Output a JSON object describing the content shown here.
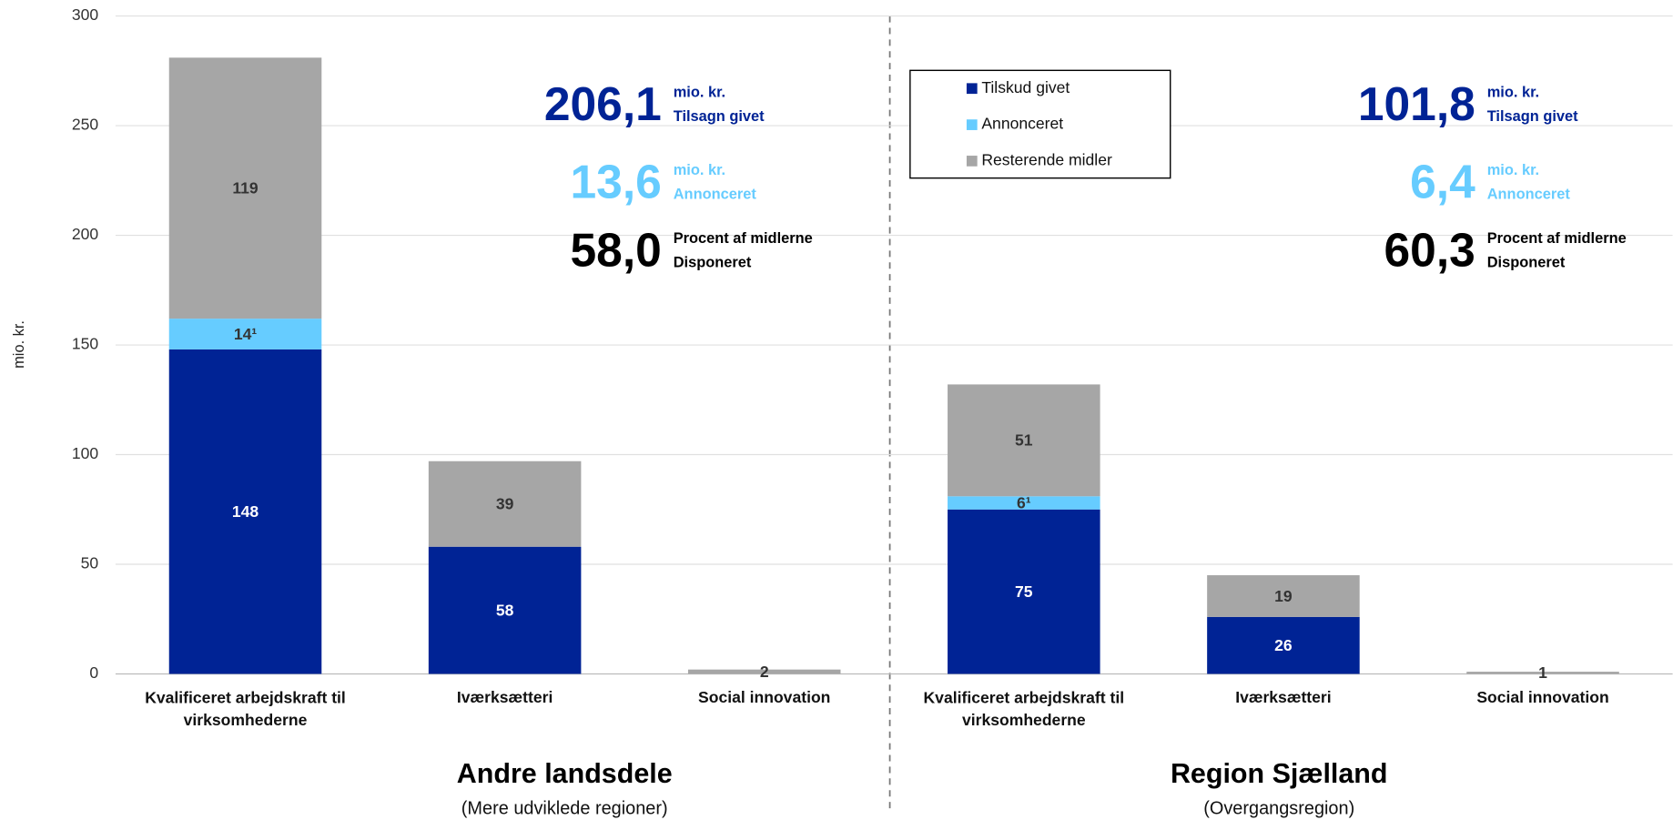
{
  "chart_data": {
    "type": "stacked_bar",
    "y_label": "mio. kr.",
    "ylim": [
      0,
      300
    ],
    "yticks": [
      0,
      50,
      100,
      150,
      200,
      250,
      300
    ],
    "grid": true,
    "legend": "top",
    "categories": [
      "Kvalificeret arbejdskraft til virksomhederne",
      "Iværksætteri",
      "Social innovation",
      "Kvalificeret arbejdskraft til virksomhederne",
      "Iværksætteri",
      "Social innovation"
    ],
    "series": [
      {
        "name": "Tilskud givet",
        "color": "#002395",
        "values": [
          148,
          58,
          0,
          75,
          26,
          0
        ]
      },
      {
        "name": "Annonceret",
        "color": "#66ccff",
        "values": [
          14,
          0,
          0,
          6,
          0,
          0
        ],
        "value_labels": [
          "14¹",
          null,
          null,
          "6¹",
          null,
          null
        ]
      },
      {
        "name": "Resterende midler",
        "color": "#a6a6a6",
        "values": [
          119,
          39,
          2,
          51,
          19,
          1
        ]
      }
    ],
    "groups": [
      {
        "name": "Andre landsdele",
        "subtitle": "(Mere udviklede regioner)",
        "stats": [
          {
            "value": "206,1",
            "unit": "mio. kr.",
            "label": "Tilsagn givet",
            "color": "#002395"
          },
          {
            "value": "13,6",
            "unit": "mio. kr.",
            "label": "Annonceret",
            "color": "#66ccff"
          },
          {
            "value": "58,0",
            "unit": "Procent af midlerne",
            "label": "Disponeret",
            "color": "#000000"
          }
        ]
      },
      {
        "name": "Region Sjælland",
        "subtitle": "(Overgangsregion)",
        "stats": [
          {
            "value": "101,8",
            "unit": "mio. kr.",
            "label": "Tilsagn givet",
            "color": "#002395"
          },
          {
            "value": "6,4",
            "unit": "mio. kr.",
            "label": "Annonceret",
            "color": "#66ccff"
          },
          {
            "value": "60,3",
            "unit": "Procent af midlerne",
            "label": "Disponeret",
            "color": "#000000"
          }
        ]
      }
    ]
  }
}
